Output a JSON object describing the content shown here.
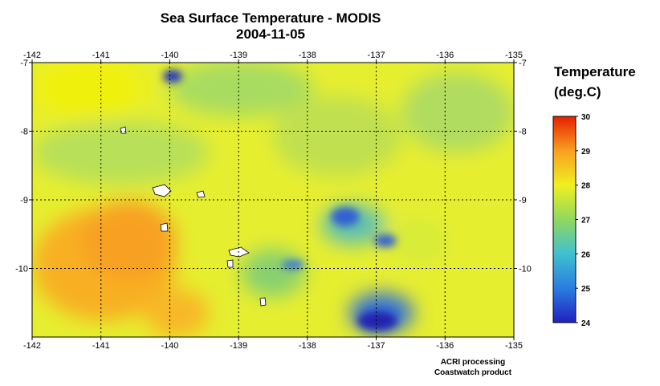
{
  "title": "Sea Surface Temperature - MODIS",
  "date": "2004-11-05",
  "map": {
    "xlim": [
      -142,
      -135
    ],
    "xticks": [
      -142,
      -141,
      -140,
      -139,
      -138,
      -137,
      -136,
      -135
    ],
    "ylim": [
      -7,
      -11
    ],
    "yticks": [
      -7,
      -8,
      -9,
      -10
    ],
    "grid": true
  },
  "colorbar": {
    "title": "Temperature",
    "units": "(deg.C)",
    "lim": [
      24,
      30
    ],
    "ticks": [
      24,
      25,
      26,
      27,
      28,
      29,
      30
    ],
    "colors": [
      "#2020c0",
      "#2a7de0",
      "#40c0d0",
      "#90d860",
      "#f0f020",
      "#f8a020",
      "#e82000"
    ]
  },
  "credits": [
    "ACRI processing",
    "Coastwatch product"
  ]
}
